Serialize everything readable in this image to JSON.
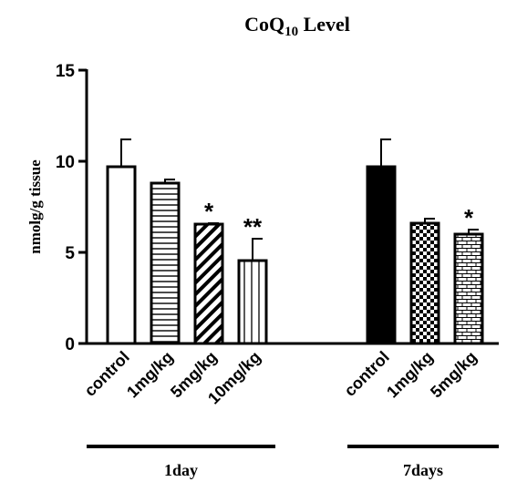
{
  "chart_data": {
    "type": "bar",
    "title_main": "CoQ",
    "title_sub": "10",
    "title_rest": " Level",
    "ylabel": "nmolg/g tissue",
    "ylim": [
      0,
      15
    ],
    "yticks": [
      "0",
      "5",
      "10",
      "15"
    ],
    "grid": false,
    "groups": [
      {
        "label": "1day",
        "bars": [
          {
            "category": "control",
            "value": 9.7,
            "error": 1.5,
            "significance": "",
            "fill": "white"
          },
          {
            "category": "1mg/kg",
            "value": 8.8,
            "error": 0.2,
            "significance": "",
            "fill": "horizontal-lines"
          },
          {
            "category": "5mg/kg",
            "value": 6.55,
            "error": 0.05,
            "significance": "*",
            "fill": "diagonal-stripes"
          },
          {
            "category": "10mg/kg",
            "value": 4.55,
            "error": 1.2,
            "significance": "**",
            "fill": "vertical-lines"
          }
        ]
      },
      {
        "label": "7days",
        "bars": [
          {
            "category": "control",
            "value": 9.7,
            "error": 1.5,
            "significance": "",
            "fill": "solid-black"
          },
          {
            "category": "1mg/kg",
            "value": 6.6,
            "error": 0.25,
            "significance": "",
            "fill": "checkerboard"
          },
          {
            "category": "5mg/kg",
            "value": 6.0,
            "error": 0.25,
            "significance": "*",
            "fill": "brick"
          }
        ]
      }
    ]
  }
}
